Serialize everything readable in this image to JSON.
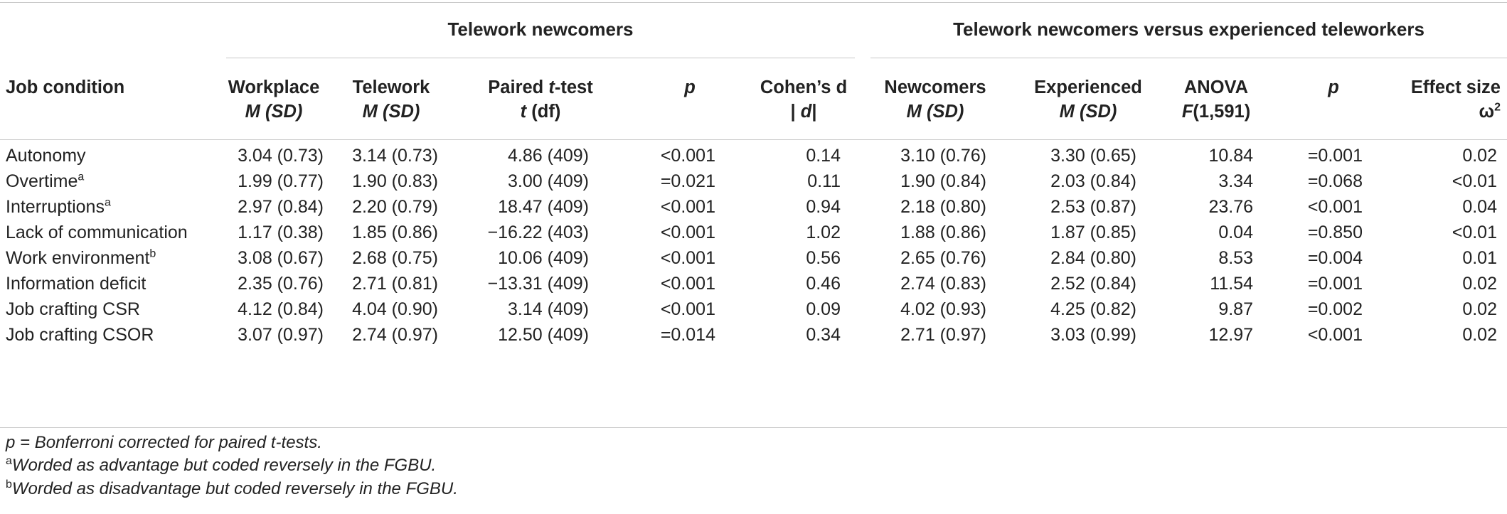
{
  "table": {
    "groups": {
      "newcomers": "Telework newcomers",
      "comparison": "Telework newcomers versus experienced teleworkers"
    },
    "headers": {
      "job_condition": "Job condition",
      "workplace": {
        "line1": "Workplace",
        "line2": "M (SD)"
      },
      "telework": {
        "line1": "Telework",
        "line2": "M (SD)"
      },
      "paired": {
        "line1_a": "Paired ",
        "line1_t": "t",
        "line1_b": "-test",
        "line2_t": "t",
        "line2_b": " (df)"
      },
      "p1": "p",
      "cohens": {
        "line1": "Cohen’s d",
        "line2_a": "| ",
        "line2_d": "d",
        "line2_b": "|"
      },
      "newcomers": {
        "line1": "Newcomers",
        "line2": "M (SD)"
      },
      "experienced": {
        "line1": "Experienced",
        "line2": "M (SD)"
      },
      "anova": {
        "line1": "ANOVA",
        "line2_f": "F",
        "line2_b": "(1,591)"
      },
      "p2": "p",
      "effect": {
        "line1": "Effect size",
        "line2": "ω",
        "line2_sup": "2"
      }
    },
    "rows": [
      {
        "label": "Autonomy",
        "sup": "",
        "workplace": "3.04 (0.73)",
        "telework": "3.14 (0.73)",
        "t": "4.86 (409)",
        "p1": "<0.001",
        "d": "0.14",
        "newcomers": "3.10 (0.76)",
        "experienced": "3.30 (0.65)",
        "F": "10.84",
        "p2": "=0.001",
        "omega": "0.02"
      },
      {
        "label": "Overtime",
        "sup": "a",
        "workplace": "1.99 (0.77)",
        "telework": "1.90 (0.83)",
        "t": "3.00 (409)",
        "p1": "=0.021",
        "d": "0.11",
        "newcomers": "1.90 (0.84)",
        "experienced": "2.03 (0.84)",
        "F": "3.34",
        "p2": "=0.068",
        "omega": "<0.01"
      },
      {
        "label": "Interruptions",
        "sup": "a",
        "workplace": "2.97 (0.84)",
        "telework": "2.20 (0.79)",
        "t": "18.47 (409)",
        "p1": "<0.001",
        "d": "0.94",
        "newcomers": "2.18 (0.80)",
        "experienced": "2.53 (0.87)",
        "F": "23.76",
        "p2": "<0.001",
        "omega": "0.04"
      },
      {
        "label": "Lack of communication",
        "sup": "",
        "workplace": "1.17 (0.38)",
        "telework": "1.85 (0.86)",
        "t": "−16.22 (403)",
        "p1": "<0.001",
        "d": "1.02",
        "newcomers": "1.88 (0.86)",
        "experienced": "1.87 (0.85)",
        "F": "0.04",
        "p2": "=0.850",
        "omega": "<0.01"
      },
      {
        "label": "Work environment",
        "sup": "b",
        "workplace": "3.08 (0.67)",
        "telework": "2.68 (0.75)",
        "t": "10.06 (409)",
        "p1": "<0.001",
        "d": "0.56",
        "newcomers": "2.65 (0.76)",
        "experienced": "2.84 (0.80)",
        "F": "8.53",
        "p2": "=0.004",
        "omega": "0.01"
      },
      {
        "label": "Information deficit",
        "sup": "",
        "workplace": "2.35 (0.76)",
        "telework": "2.71 (0.81)",
        "t": "−13.31 (409)",
        "p1": "<0.001",
        "d": "0.46",
        "newcomers": "2.74 (0.83)",
        "experienced": "2.52 (0.84)",
        "F": "11.54",
        "p2": "=0.001",
        "omega": "0.02"
      },
      {
        "label": "Job crafting CSR",
        "sup": "",
        "workplace": "4.12 (0.84)",
        "telework": "4.04 (0.90)",
        "t": "3.14 (409)",
        "p1": "<0.001",
        "d": "0.09",
        "newcomers": "4.02 (0.93)",
        "experienced": "4.25 (0.82)",
        "F": "9.87",
        "p2": "=0.002",
        "omega": "0.02"
      },
      {
        "label": "Job crafting CSOR",
        "sup": "",
        "workplace": "3.07 (0.97)",
        "telework": "2.74 (0.97)",
        "t": "12.50 (409)",
        "p1": "=0.014",
        "d": "0.34",
        "newcomers": "2.71 (0.97)",
        "experienced": "3.03 (0.99)",
        "F": "12.97",
        "p2": "<0.001",
        "omega": "0.02"
      }
    ],
    "notes": {
      "n1_p": "p",
      "n1_rest": " = Bonferroni corrected for paired t-tests.",
      "n2_sup": "a",
      "n2_text": "Worded as advantage but coded reversely in the FGBU.",
      "n3_sup": "b",
      "n3_text": "Worded as disadvantage but coded reversely in the FGBU."
    }
  }
}
